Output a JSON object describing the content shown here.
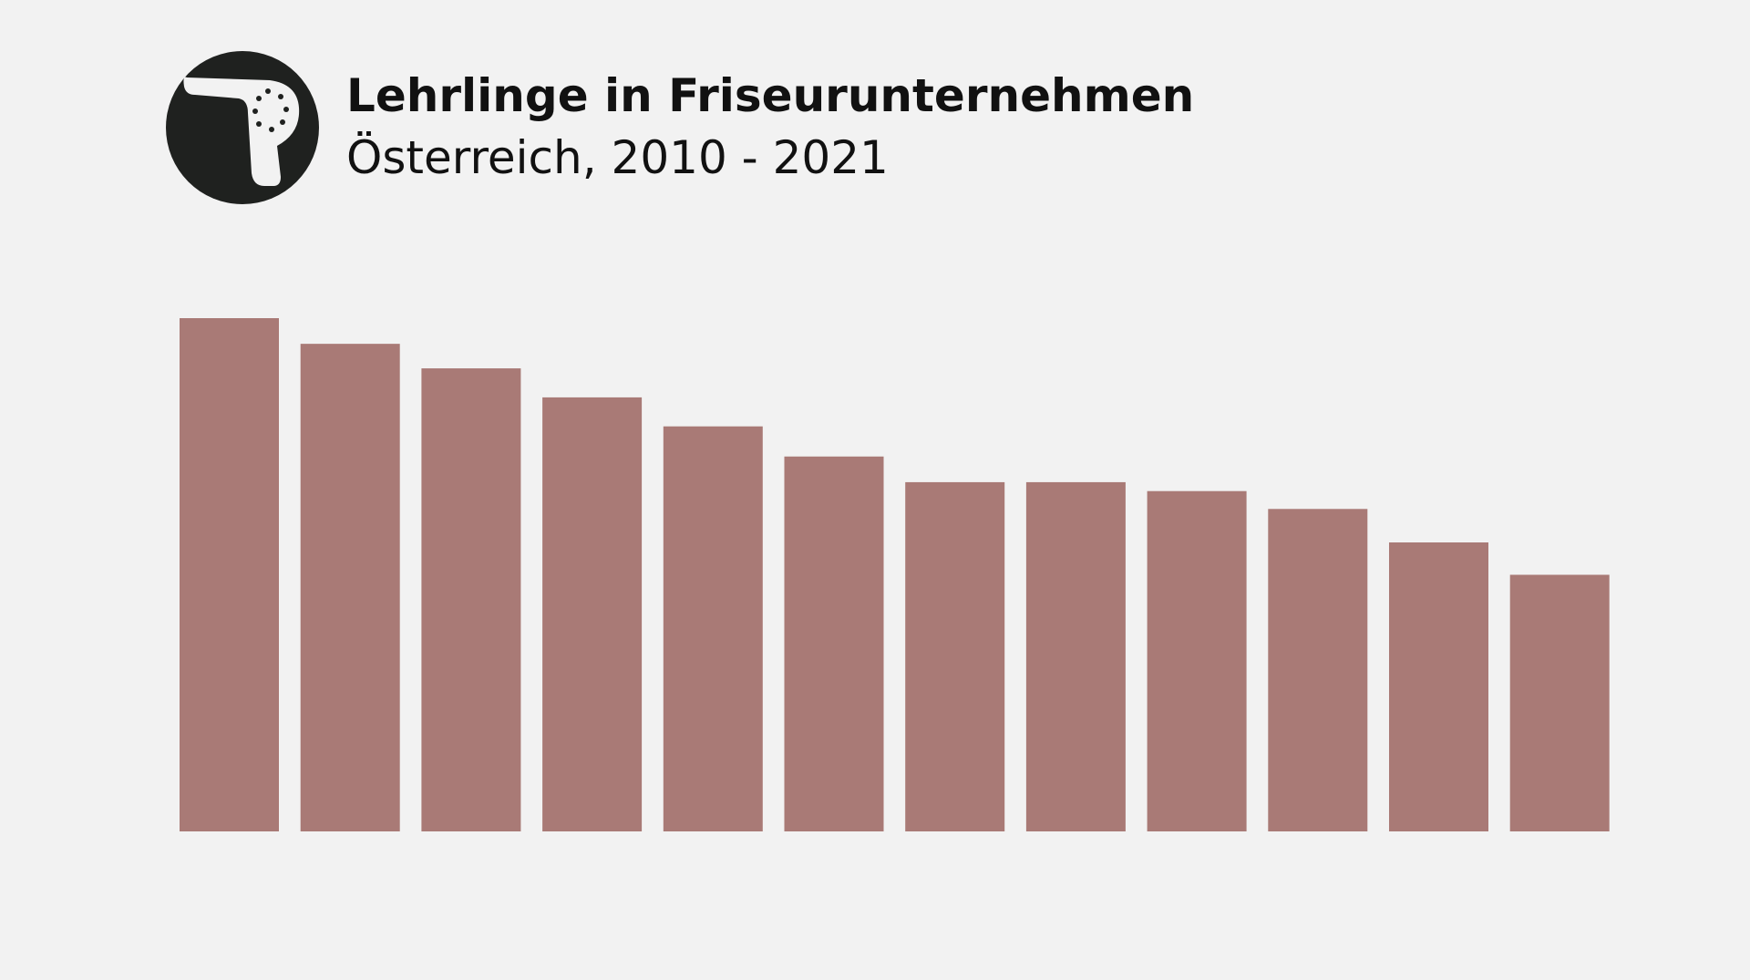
{
  "chart_data": {
    "type": "bar",
    "title": "Lehrlinge in Friseurunternehmen",
    "subtitle": "Österreich, 2010 - 2021",
    "values": [
      460,
      437,
      415,
      389,
      363,
      336,
      313,
      313,
      305,
      289,
      259,
      230
    ],
    "color": "#a97a76"
  }
}
